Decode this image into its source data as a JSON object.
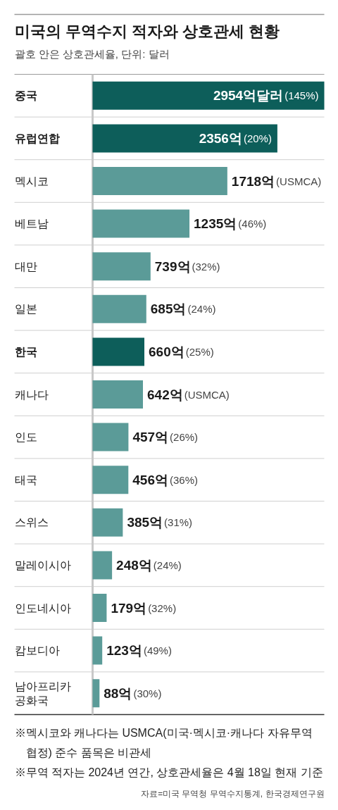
{
  "chart_data": {
    "type": "bar",
    "orientation": "horizontal",
    "title": "미국의 무역수지 적자와 상호관세 현황",
    "subtitle": "괄호 안은 상호관세율, 단위: 달러",
    "categories": [
      "중국",
      "유럽연합",
      "멕시코",
      "베트남",
      "대만",
      "일본",
      "한국",
      "캐나다",
      "인도",
      "태국",
      "스위스",
      "말레이시아",
      "인도네시아",
      "캄보디아",
      "남아프리카 공화국"
    ],
    "values": [
      2954,
      2356,
      1718,
      1235,
      739,
      685,
      660,
      642,
      457,
      456,
      385,
      248,
      179,
      123,
      88
    ],
    "colors": [
      "#0d5e5a",
      "#0d5e5a",
      "#5b9b98",
      "#5b9b98",
      "#5b9b98",
      "#5b9b98",
      "#0d5e5a",
      "#5b9b98",
      "#5b9b98",
      "#5b9b98",
      "#5b9b98",
      "#5b9b98",
      "#5b9b98",
      "#5b9b98",
      "#5b9b98"
    ],
    "value_labels": [
      "2954억달러(145%)",
      "2356억(20%)",
      "1718억(USMCA)",
      "1235억(46%)",
      "739억(32%)",
      "685억(24%)",
      "660억(25%)",
      "642억(USMCA)",
      "457억(26%)",
      "456억(36%)",
      "385억(31%)",
      "248억(24%)",
      "179억(32%)",
      "123억(49%)",
      "88억(30%)"
    ],
    "grid": "y",
    "annotations": [
      "※멕시코와 캐나다는 USMCA(미국·멕시코·캐나다 자유무역 협정) 준수 품목은 비관세",
      "※무역 적자는 2024년 연간, 상호관세율은 4월 18일 현재 기준",
      "자료=미국 무역청 무역수지통계, 한국경제연구원"
    ]
  }
}
